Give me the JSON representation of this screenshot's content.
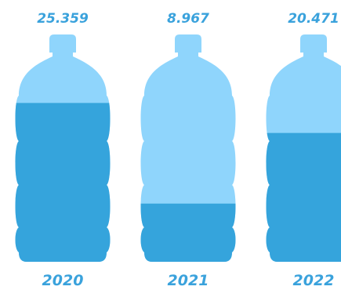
{
  "colors": {
    "light": "#8fd5fc",
    "dark": "#35a4dc",
    "label": "#3aa2dc"
  },
  "chart_data": {
    "type": "bar",
    "categories": [
      "2020",
      "2021",
      "2022"
    ],
    "values": [
      25.359,
      8.967,
      20.471
    ],
    "value_labels": [
      "25.359",
      "8.967",
      "20.471"
    ],
    "ylim": [
      0,
      30
    ]
  }
}
